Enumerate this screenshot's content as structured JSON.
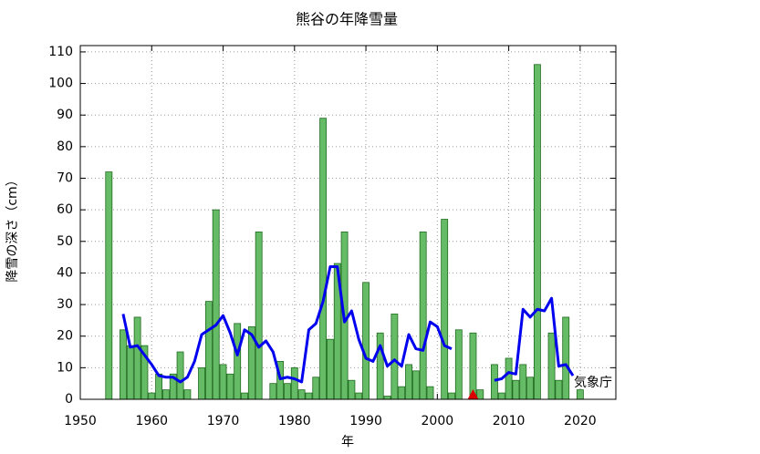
{
  "chart_data": {
    "type": "bar",
    "title": "熊谷の年降雪量",
    "xlabel": "年",
    "ylabel": "降雪の深さ（cm）",
    "annotation": "気象庁",
    "x": [
      1954,
      1955,
      1956,
      1957,
      1958,
      1959,
      1960,
      1961,
      1962,
      1963,
      1964,
      1965,
      1966,
      1967,
      1968,
      1969,
      1970,
      1971,
      1972,
      1973,
      1974,
      1975,
      1976,
      1977,
      1978,
      1979,
      1980,
      1981,
      1982,
      1983,
      1984,
      1985,
      1986,
      1987,
      1988,
      1989,
      1990,
      1991,
      1992,
      1993,
      1994,
      1995,
      1996,
      1997,
      1998,
      1999,
      2000,
      2001,
      2002,
      2003,
      2004,
      2005,
      2006,
      2007,
      2008,
      2009,
      2010,
      2011,
      2012,
      2013,
      2014,
      2015,
      2016,
      2017,
      2018,
      2019,
      2020
    ],
    "bars": {
      "color": "#66bb66",
      "values": [
        72,
        0,
        22,
        17,
        26,
        17,
        2,
        8,
        3,
        8,
        15,
        3,
        0,
        10,
        31,
        60,
        11,
        8,
        24,
        2,
        23,
        53,
        0,
        5,
        12,
        5,
        10,
        3,
        2,
        7,
        89,
        19,
        43,
        53,
        6,
        2,
        37,
        0,
        21,
        1,
        27,
        4,
        11,
        9,
        53,
        4,
        0,
        57,
        2,
        22,
        0,
        21,
        3,
        0,
        11,
        2,
        13,
        6,
        11,
        7,
        106,
        0,
        21,
        6,
        26,
        0,
        3
      ]
    },
    "line": {
      "color": "#0000ee",
      "values": [
        null,
        null,
        27,
        16.5,
        17,
        14,
        11,
        7.5,
        7,
        7,
        5.5,
        7,
        12,
        20.5,
        22,
        23.5,
        26.5,
        21,
        14,
        22,
        20.5,
        16.5,
        18.5,
        15,
        6.5,
        7,
        6.5,
        5.5,
        22,
        24,
        31,
        42,
        42,
        24.5,
        28,
        19,
        13,
        12,
        17,
        10.5,
        12.5,
        10.5,
        20.5,
        16,
        15.5,
        24.5,
        23,
        17,
        16,
        null,
        null,
        null,
        null,
        null,
        6,
        6.5,
        8.5,
        8,
        28.5,
        26,
        28.5,
        28,
        32,
        10.5,
        11,
        7.5,
        null
      ]
    },
    "marker": {
      "x": 2005,
      "y": 0,
      "color": "#dd0000"
    },
    "xlim": [
      1950,
      2025
    ],
    "ylim": [
      0,
      112
    ],
    "xticks": [
      1950,
      1960,
      1970,
      1980,
      1990,
      2000,
      2010,
      2020
    ],
    "yticks": [
      0,
      10,
      20,
      30,
      40,
      50,
      60,
      70,
      80,
      90,
      100,
      110
    ],
    "grid": true
  }
}
